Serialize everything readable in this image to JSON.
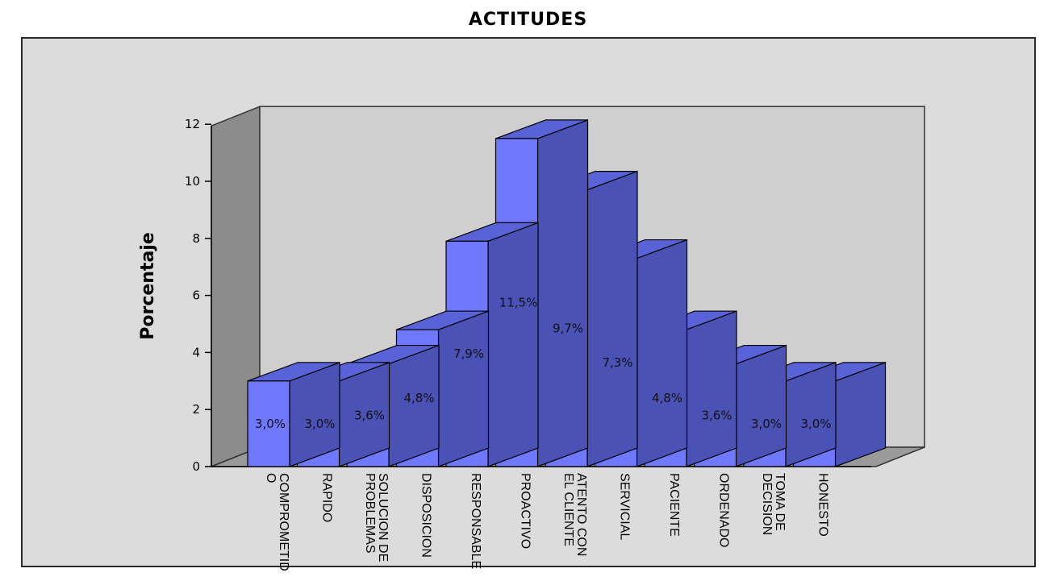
{
  "chart_data": {
    "type": "bar",
    "title": "ACTITUDES",
    "xlabel": "",
    "ylabel": "Porcentaje",
    "ylim": [
      0,
      12
    ],
    "yticks": [
      "0",
      "2",
      "4",
      "6",
      "8",
      "10",
      "12"
    ],
    "categories": [
      [
        "COMPROMETID",
        "O"
      ],
      [
        "RAPIDO"
      ],
      [
        "SOLUCION DE",
        "PROBLEMAS"
      ],
      [
        "DISPOSICION"
      ],
      [
        "RESPONSABLE"
      ],
      [
        "PROACTIVO"
      ],
      [
        "ATENTO CON",
        "EL CLIENTE"
      ],
      [
        "SERVICIAL"
      ],
      [
        "PACIENTE"
      ],
      [
        "ORDENADO"
      ],
      [
        "TOMA DE",
        "DECISION"
      ],
      [
        "HONESTO"
      ]
    ],
    "values": [
      3.0,
      3.0,
      3.6,
      4.8,
      7.9,
      11.5,
      9.7,
      7.3,
      4.8,
      3.6,
      3.0,
      3.0
    ],
    "data_labels": [
      "3,0%",
      "3,0%",
      "3,6%",
      "4,8%",
      "7,9%",
      "11,5%",
      "9,7%",
      "7,3%",
      "4,8%",
      "3,6%",
      "3,0%",
      "3,0%"
    ],
    "style": "3d",
    "grid": false,
    "colors": {
      "bar_front": "#6f78ff",
      "bar_side": "#4a52b6",
      "bar_top": "#5a62d8",
      "bar_edge": "#000000",
      "back_wall": "#cfcfcf",
      "side_wall": "#8c8c8c",
      "floor": "#9a9a9a"
    }
  }
}
